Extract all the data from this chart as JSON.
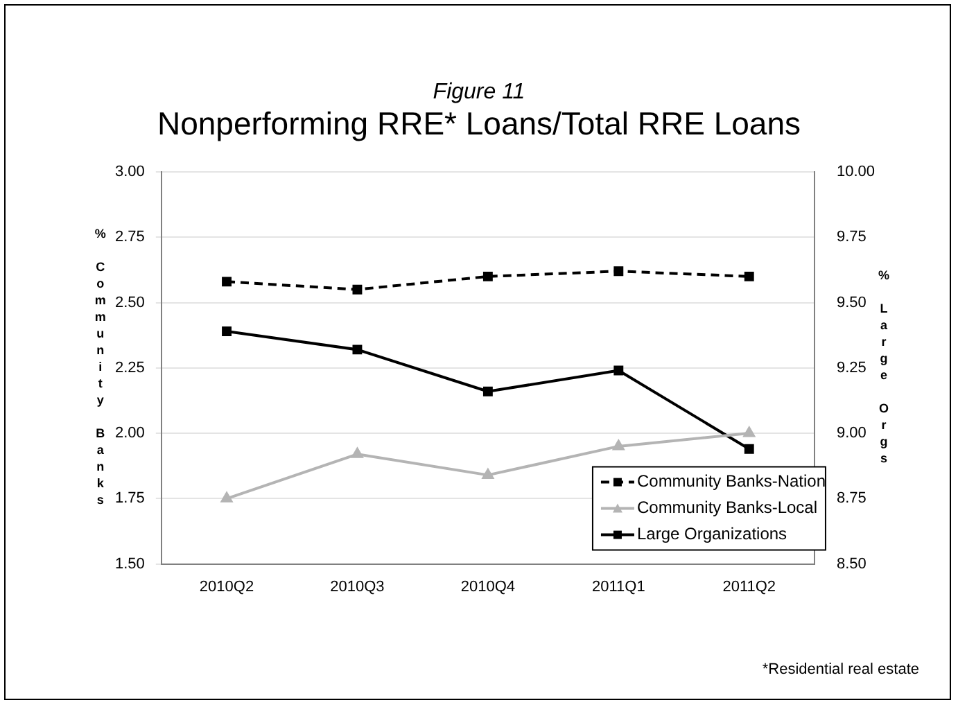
{
  "chart_data": {
    "type": "line",
    "subtitle": "Figure 11",
    "title": "Nonperforming RRE* Loans/Total RRE Loans",
    "ylabel": "% Community Banks",
    "y2label": "% Large Orgs",
    "categories": [
      "2010Q2",
      "2010Q3",
      "2010Q4",
      "2011Q1",
      "2011Q2"
    ],
    "series": [
      {
        "name": "Community Banks-Nation",
        "color": "#000000",
        "values": [
          2.58,
          2.55,
          2.6,
          2.62,
          2.6
        ],
        "marker": "square",
        "line_style": "dashed"
      },
      {
        "name": "Community Banks-Local",
        "color": "#b4b4b4",
        "values": [
          1.75,
          1.92,
          1.84,
          1.95,
          2.0
        ],
        "marker": "triangle",
        "line_style": "solid"
      },
      {
        "name": "Large Organizations",
        "color": "#000000",
        "values": [
          9.39,
          9.32,
          9.16,
          9.24,
          8.94
        ],
        "marker": "square",
        "line_style": "solid",
        "axis": "y2"
      }
    ],
    "ylim": [
      1.5,
      3.0
    ],
    "yticks": [
      {
        "value": 1.5,
        "label": "1.50"
      },
      {
        "value": 1.75,
        "label": "1.75"
      },
      {
        "value": 2,
        "label": "2.00"
      },
      {
        "value": 2.25,
        "label": "2.25"
      },
      {
        "value": 2.5,
        "label": "2.50"
      },
      {
        "value": 2.75,
        "label": "2.75"
      },
      {
        "value": 3,
        "label": "3.00"
      }
    ],
    "y2lim": [
      8.5,
      10.0
    ],
    "y2ticks": [
      {
        "value": 8.5,
        "label": "8.50"
      },
      {
        "value": 8.75,
        "label": "8.75"
      },
      {
        "value": 9,
        "label": "9.00"
      },
      {
        "value": 9.25,
        "label": "9.25"
      },
      {
        "value": 9.5,
        "label": "9.50"
      },
      {
        "value": 9.75,
        "label": "9.75"
      },
      {
        "value": 10,
        "label": "10.00"
      }
    ],
    "grid": "y",
    "legend": "bottom right",
    "annotations": [
      "*Residential real estate"
    ]
  }
}
